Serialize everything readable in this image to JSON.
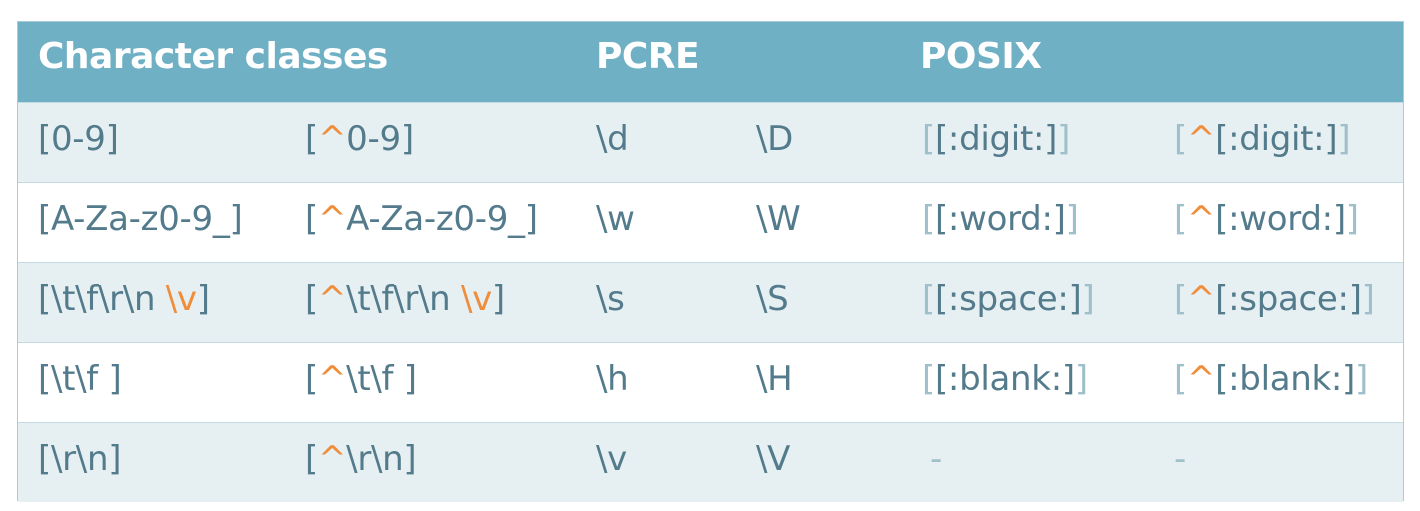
{
  "header": {
    "col_group_1": "Character classes",
    "col_group_2": "PCRE",
    "col_group_3": "POSIX"
  },
  "colors": {
    "header_bg": "#6fb0c4",
    "row_alt_bg": "#e6f0f3",
    "text": "#537b8c",
    "accent": "#ef8d3b",
    "posix_bracket": "#9fc0cb"
  },
  "rows": [
    {
      "class": {
        "open": "[",
        "body": "0-9",
        "close": "]"
      },
      "neg": {
        "open": "[",
        "caret": "^",
        "body": "0-9",
        "close": "]"
      },
      "pcre": "\\d",
      "pcre_neg": "\\D",
      "posix": {
        "open": "[",
        "body": "[:digit:]",
        "close": "]"
      },
      "posix_neg": {
        "open": "[",
        "caret": "^",
        "body": "[:digit:]",
        "close": "]"
      }
    },
    {
      "class": {
        "open": "[",
        "body": "A-Za-z0-9_",
        "close": "]"
      },
      "neg": {
        "open": "[",
        "caret": "^",
        "body": "A-Za-z0-9_",
        "close": "]"
      },
      "pcre": "\\w",
      "pcre_neg": "\\W",
      "posix": {
        "open": "[",
        "body": "[:word:]",
        "close": "]"
      },
      "posix_neg": {
        "open": "[",
        "caret": "^",
        "body": "[:word:]",
        "close": "]"
      }
    },
    {
      "class": {
        "open": "[",
        "body": "\\t\\f\\r\\n ",
        "accent": "\\v",
        "close": "]"
      },
      "neg": {
        "open": "[",
        "caret": "^",
        "body": "\\t\\f\\r\\n ",
        "accent": "\\v",
        "close": "]"
      },
      "pcre": "\\s",
      "pcre_neg": "\\S",
      "posix": {
        "open": "[",
        "body": "[:space:]",
        "close": "]"
      },
      "posix_neg": {
        "open": "[",
        "caret": "^",
        "body": "[:space:]",
        "close": "]"
      }
    },
    {
      "class": {
        "open": "[",
        "body": "\\t\\f ",
        "close": "]"
      },
      "neg": {
        "open": "[",
        "caret": "^",
        "body": "\\t\\f ",
        "close": "]"
      },
      "pcre": "\\h",
      "pcre_neg": "\\H",
      "posix": {
        "open": "[",
        "body": "[:blank:]",
        "close": "]"
      },
      "posix_neg": {
        "open": "[",
        "caret": "^",
        "body": "[:blank:]",
        "close": "]"
      }
    },
    {
      "class": {
        "open": "[",
        "body": "\\r\\n",
        "close": "]"
      },
      "neg": {
        "open": "[",
        "caret": "^",
        "body": "\\r\\n",
        "close": "]"
      },
      "pcre": "\\v",
      "pcre_neg": "\\V",
      "posix_dash": "-",
      "posix_neg_dash": "-"
    }
  ]
}
